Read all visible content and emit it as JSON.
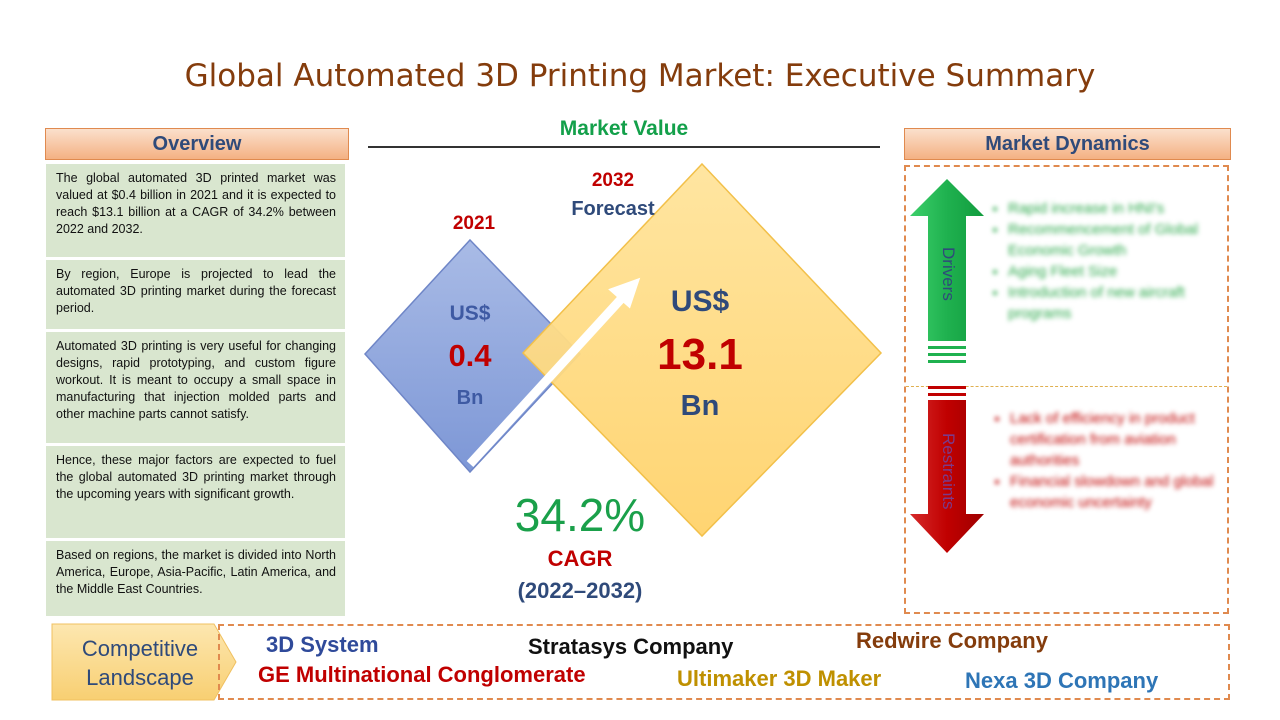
{
  "title": "Global Automated 3D Printing Market: Executive Summary",
  "overview": {
    "header": "Overview",
    "paragraphs": [
      "The global automated 3D printed market was valued at $0.4 billion in 2021 and it is expected to reach $13.1 billion at a CAGR of 34.2% between 2022 and 2032.",
      "By region, Europe is projected to lead the automated 3D printing market during the forecast period.",
      "Automated 3D printing is very useful for changing designs, rapid prototyping, and custom figure workout. It is meant to occupy a small space in manufacturing that injection molded parts and other machine parts cannot satisfy.",
      "Hence, these major factors are expected to fuel the global automated 3D printing market through the upcoming years with significant growth.",
      "Based on regions, the market is divided into North America, Europe, Asia-Pacific, Latin America, and the Middle East Countries."
    ]
  },
  "market_value": {
    "header": "Market Value",
    "base": {
      "year": "2021",
      "currency": "US$",
      "value": "0.4",
      "unit": "Bn"
    },
    "forecast": {
      "year": "2032",
      "label": "Forecast",
      "currency": "US$",
      "value": "13.1",
      "unit": "Bn"
    },
    "cagr": {
      "value": "34.2%",
      "label": "CAGR",
      "period": "(2022–2032)"
    }
  },
  "dynamics": {
    "header": "Market Dynamics",
    "drivers_label": "Drivers",
    "restraints_label": "Restraints",
    "drivers": [
      "Rapid increase in HNI's",
      "Recommencement of Global Economic Growth",
      "Aging Fleet Size",
      "Introduction of new aircraft programs"
    ],
    "restraints": [
      "Lack of efficiency in product certification from aviation authorities",
      "Financial slowdown and global economic uncertainty"
    ]
  },
  "competitive": {
    "label_line1": "Competitive",
    "label_line2": "Landscape",
    "companies": [
      {
        "name": "3D System",
        "color": "#2f4a9a"
      },
      {
        "name": "Stratasys Company",
        "color": "#111111"
      },
      {
        "name": "Redwire Company",
        "color": "#843c0c"
      },
      {
        "name": "GE Multinational Conglomerate",
        "color": "#c00000"
      },
      {
        "name": "Ultimaker 3D Maker",
        "color": "#bf9000"
      },
      {
        "name": "Nexa 3D Company",
        "color": "#2e75b6"
      }
    ]
  },
  "colors": {
    "header_fill": "#f4b183",
    "overview_fill": "#d9e6cf",
    "small_diamond": "#8ea6dc",
    "large_diamond": "#ffd980",
    "driver_arrow": "#1fb14f",
    "restraint_arrow": "#c00000"
  }
}
